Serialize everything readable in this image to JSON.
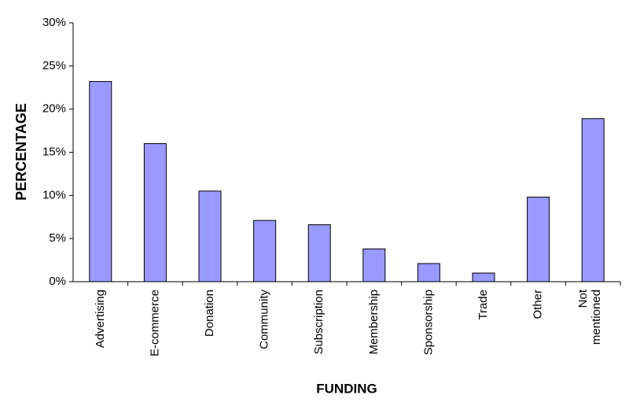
{
  "chart_data": {
    "type": "bar",
    "x_label": "FUNDING",
    "y_label": "PERCENTAGE",
    "categories": [
      "Advertising",
      "E-commerce",
      "Donation",
      "Community",
      "Subscription",
      "Membership",
      "Sponsorship",
      "Trade",
      "Other",
      "Not mentioned"
    ],
    "values": [
      23.2,
      16.0,
      10.5,
      7.1,
      6.6,
      3.8,
      2.1,
      1.0,
      9.8,
      18.9
    ],
    "color": "#9999ff",
    "ylim": [
      0,
      30
    ],
    "yticks": [
      {
        "value": 0,
        "label": "0%"
      },
      {
        "value": 5,
        "label": "5%"
      },
      {
        "value": 10,
        "label": "10%"
      },
      {
        "value": 15,
        "label": "15%"
      },
      {
        "value": 20,
        "label": "20%"
      },
      {
        "value": 25,
        "label": "25%"
      },
      {
        "value": 30,
        "label": "30%"
      }
    ],
    "grid": false
  }
}
